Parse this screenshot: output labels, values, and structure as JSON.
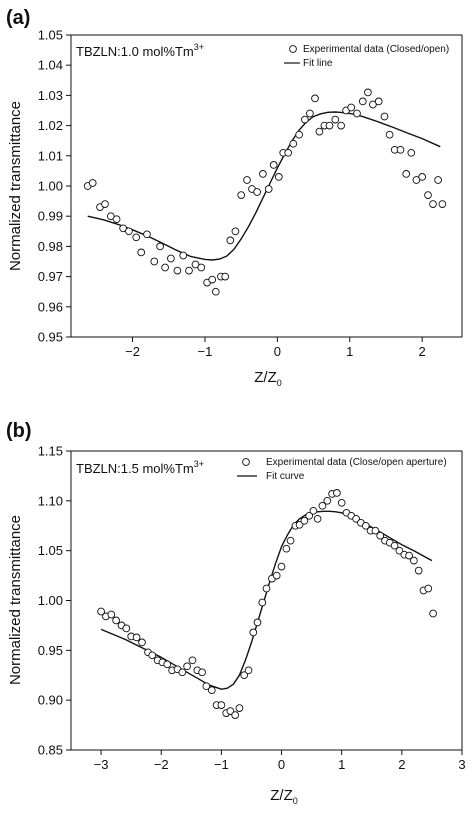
{
  "chart_data": [
    {
      "panel_label": "(a)",
      "type": "scatter",
      "annotation": {
        "main": "TBZLN:1.0 mol%Tm",
        "sup": "3+"
      },
      "xlabel": {
        "main": "Z/Z",
        "sub": "0"
      },
      "ylabel": "Normalized transmittance",
      "xlim": [
        -2.85,
        2.55
      ],
      "ylim": [
        0.95,
        1.05
      ],
      "xticks": [
        -2,
        -1,
        0,
        1,
        2
      ],
      "yticks": [
        0.95,
        0.96,
        0.97,
        0.98,
        0.99,
        1.0,
        1.01,
        1.02,
        1.03,
        1.04,
        1.05
      ],
      "xtick_labels": [
        "−2",
        "−1",
        "0",
        "1",
        "2"
      ],
      "ytick_labels": [
        "0.95",
        "0.96",
        "0.97",
        "0.98",
        "0.99",
        "1.00",
        "1.01",
        "1.02",
        "1.03",
        "1.04",
        "1.05"
      ],
      "legend_position": "top-right",
      "series": [
        {
          "name": "Experimental data (Closed/open)",
          "kind": "scatter",
          "x": [
            -2.62,
            -2.55,
            -2.45,
            -2.38,
            -2.3,
            -2.22,
            -2.13,
            -2.05,
            -1.95,
            -1.88,
            -1.8,
            -1.7,
            -1.62,
            -1.55,
            -1.47,
            -1.38,
            -1.3,
            -1.22,
            -1.13,
            -1.05,
            -0.97,
            -0.9,
            -0.85,
            -0.78,
            -0.72,
            -0.65,
            -0.58,
            -0.5,
            -0.42,
            -0.35,
            -0.28,
            -0.2,
            -0.12,
            -0.05,
            0.02,
            0.08,
            0.15,
            0.22,
            0.3,
            0.38,
            0.45,
            0.52,
            0.58,
            0.65,
            0.72,
            0.8,
            0.88,
            0.95,
            1.02,
            1.1,
            1.18,
            1.25,
            1.32,
            1.4,
            1.48,
            1.55,
            1.62,
            1.7,
            1.78,
            1.85,
            1.92,
            2.0,
            2.08,
            2.15,
            2.22,
            2.28
          ],
          "y": [
            1.0,
            1.001,
            0.993,
            0.994,
            0.99,
            0.989,
            0.986,
            0.985,
            0.983,
            0.978,
            0.984,
            0.975,
            0.98,
            0.973,
            0.976,
            0.972,
            0.977,
            0.972,
            0.974,
            0.973,
            0.968,
            0.969,
            0.965,
            0.97,
            0.97,
            0.982,
            0.985,
            0.997,
            1.002,
            0.999,
            0.998,
            1.004,
            0.999,
            1.007,
            1.003,
            1.011,
            1.011,
            1.014,
            1.017,
            1.022,
            1.024,
            1.029,
            1.018,
            1.02,
            1.02,
            1.022,
            1.02,
            1.025,
            1.026,
            1.024,
            1.028,
            1.031,
            1.027,
            1.028,
            1.023,
            1.017,
            1.012,
            1.012,
            1.004,
            1.011,
            1.002,
            1.003,
            0.997,
            0.994,
            1.002,
            0.994
          ]
        },
        {
          "name": "Fit line",
          "kind": "line",
          "x": [
            -2.62,
            -2.4,
            -2.2,
            -2.0,
            -1.8,
            -1.6,
            -1.4,
            -1.2,
            -1.0,
            -0.9,
            -0.8,
            -0.7,
            -0.6,
            -0.5,
            -0.4,
            -0.3,
            -0.2,
            -0.1,
            0.0,
            0.1,
            0.2,
            0.3,
            0.4,
            0.5,
            0.6,
            0.7,
            0.8,
            0.9,
            1.0,
            1.1,
            1.2,
            1.4,
            1.6,
            1.8,
            2.0,
            2.25
          ],
          "y": [
            0.99,
            0.9888,
            0.9873,
            0.9855,
            0.9835,
            0.9812,
            0.9788,
            0.9767,
            0.9757,
            0.9755,
            0.9758,
            0.9768,
            0.979,
            0.9825,
            0.9865,
            0.991,
            0.996,
            1.001,
            1.006,
            1.0105,
            1.0148,
            1.0185,
            1.0212,
            1.023,
            1.0239,
            1.0244,
            1.0245,
            1.0243,
            1.024,
            1.0235,
            1.0228,
            1.0212,
            1.0194,
            1.0175,
            1.0157,
            1.013
          ]
        }
      ]
    },
    {
      "panel_label": "(b)",
      "type": "scatter",
      "annotation": {
        "main": "TBZLN:1.5 mol%Tm",
        "sup": "3+"
      },
      "xlabel": {
        "main": "Z/Z",
        "sub": "0"
      },
      "ylabel": "Normalized transmittance",
      "xlim": [
        -3.5,
        3.0
      ],
      "ylim": [
        0.85,
        1.15
      ],
      "xticks": [
        -3,
        -2,
        -1,
        0,
        1,
        2,
        3
      ],
      "yticks": [
        0.85,
        0.9,
        0.95,
        1.0,
        1.05,
        1.1,
        1.15
      ],
      "xtick_labels": [
        "−3",
        "−2",
        "−1",
        "0",
        "1",
        "2",
        "3"
      ],
      "ytick_labels": [
        "0.85",
        "0.90",
        "0.95",
        "1.00",
        "1.05",
        "1.10",
        "1.15"
      ],
      "legend_position": "top-right",
      "series": [
        {
          "name": "Experimental data (Close/open aperture)",
          "kind": "scatter",
          "x": [
            -3.0,
            -2.92,
            -2.83,
            -2.75,
            -2.66,
            -2.58,
            -2.5,
            -2.41,
            -2.32,
            -2.22,
            -2.15,
            -2.06,
            -1.98,
            -1.9,
            -1.82,
            -1.73,
            -1.65,
            -1.57,
            -1.48,
            -1.4,
            -1.32,
            -1.25,
            -1.16,
            -1.08,
            -1.0,
            -0.92,
            -0.85,
            -0.77,
            -0.7,
            -0.62,
            -0.55,
            -0.47,
            -0.4,
            -0.32,
            -0.25,
            -0.16,
            -0.08,
            0.0,
            0.08,
            0.15,
            0.23,
            0.3,
            0.38,
            0.46,
            0.53,
            0.6,
            0.68,
            0.76,
            0.84,
            0.92,
            1.0,
            1.08,
            1.16,
            1.24,
            1.32,
            1.4,
            1.48,
            1.56,
            1.64,
            1.72,
            1.8,
            1.88,
            1.96,
            2.04,
            2.12,
            2.2,
            2.28,
            2.36,
            2.44,
            2.52
          ],
          "y": [
            0.989,
            0.984,
            0.986,
            0.98,
            0.975,
            0.972,
            0.964,
            0.963,
            0.958,
            0.948,
            0.945,
            0.94,
            0.938,
            0.936,
            0.93,
            0.931,
            0.928,
            0.934,
            0.94,
            0.93,
            0.928,
            0.914,
            0.91,
            0.895,
            0.895,
            0.887,
            0.889,
            0.885,
            0.892,
            0.925,
            0.93,
            0.968,
            0.978,
            0.998,
            1.012,
            1.022,
            1.025,
            1.034,
            1.052,
            1.06,
            1.075,
            1.076,
            1.08,
            1.085,
            1.09,
            1.082,
            1.095,
            1.1,
            1.107,
            1.108,
            1.098,
            1.088,
            1.085,
            1.082,
            1.078,
            1.075,
            1.07,
            1.07,
            1.065,
            1.06,
            1.058,
            1.055,
            1.05,
            1.046,
            1.045,
            1.04,
            1.03,
            1.01,
            1.012,
            0.987
          ]
        },
        {
          "name": "Fit curve",
          "kind": "line",
          "x": [
            -3.0,
            -2.8,
            -2.6,
            -2.4,
            -2.2,
            -2.0,
            -1.8,
            -1.6,
            -1.4,
            -1.2,
            -1.0,
            -0.9,
            -0.8,
            -0.7,
            -0.6,
            -0.5,
            -0.4,
            -0.3,
            -0.2,
            -0.1,
            0.0,
            0.1,
            0.2,
            0.3,
            0.4,
            0.5,
            0.6,
            0.7,
            0.8,
            0.9,
            1.0,
            1.2,
            1.4,
            1.6,
            1.8,
            2.0,
            2.2,
            2.5
          ],
          "y": [
            0.971,
            0.966,
            0.961,
            0.955,
            0.949,
            0.943,
            0.936,
            0.929,
            0.922,
            0.915,
            0.911,
            0.912,
            0.916,
            0.925,
            0.94,
            0.958,
            0.978,
            0.998,
            1.018,
            1.037,
            1.054,
            1.066,
            1.076,
            1.082,
            1.086,
            1.088,
            1.089,
            1.0895,
            1.0895,
            1.089,
            1.088,
            1.0835,
            1.077,
            1.07,
            1.063,
            1.056,
            1.05,
            1.04
          ]
        }
      ]
    }
  ]
}
